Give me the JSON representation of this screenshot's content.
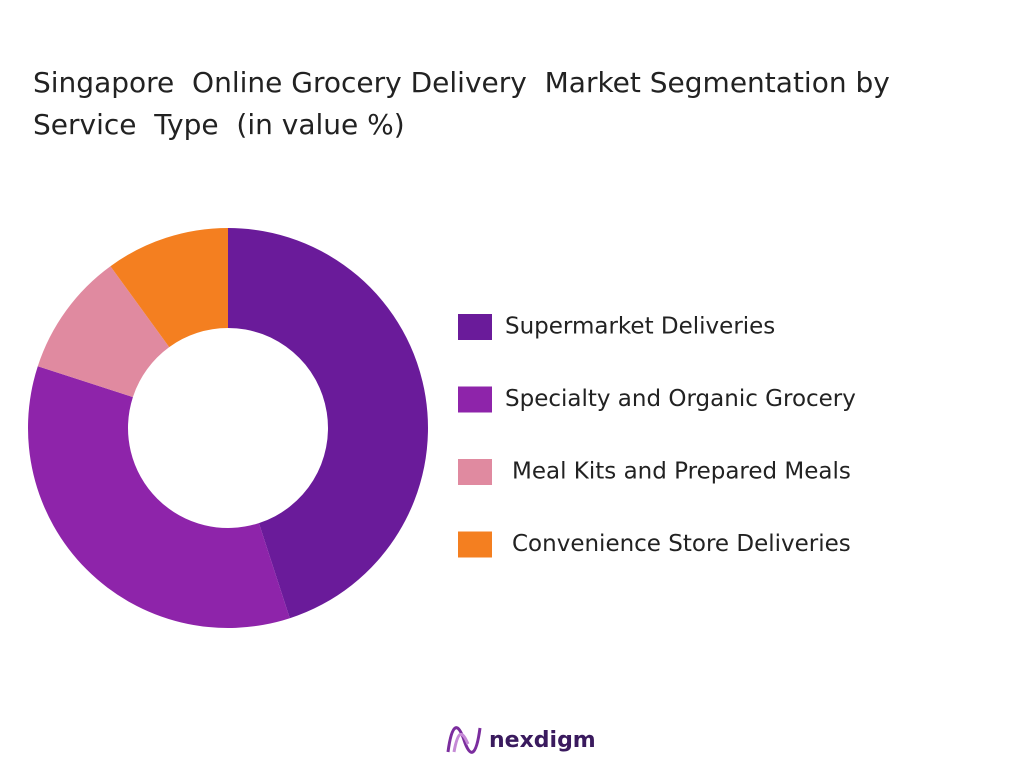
{
  "chart_data": {
    "type": "donut",
    "title": "Singapore  Online Grocery Delivery  Market Segmentation by Service  Type  (in value %)",
    "categories": [
      "Supermarket Deliveries",
      "Specialty and Organic Grocery",
      "Meal Kits and Prepared Meals",
      "Convenience Store Deliveries"
    ],
    "values": [
      45,
      35,
      10,
      10
    ],
    "colors": [
      "#6a1b9a",
      "#8e24aa",
      "#e08aa0",
      "#f47f20"
    ]
  },
  "logo": "nexdigm"
}
